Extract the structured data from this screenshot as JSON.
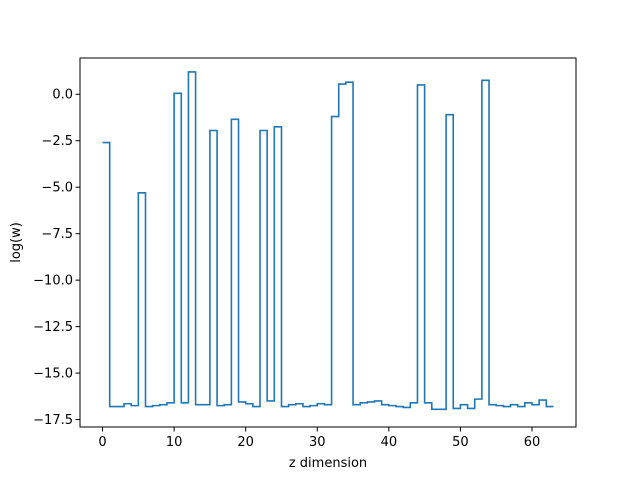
{
  "chart_data": {
    "type": "line",
    "drawstyle": "steps-post",
    "title": "",
    "xlabel": "z dimension",
    "ylabel": "log(w)",
    "xlim": [
      -3.15,
      66.15
    ],
    "ylim": [
      -17.9,
      1.95
    ],
    "xticks": [
      0,
      10,
      20,
      30,
      40,
      50,
      60
    ],
    "xtick_labels": [
      "0",
      "10",
      "20",
      "30",
      "40",
      "50",
      "60"
    ],
    "yticks": [
      -17.5,
      -15.0,
      -12.5,
      -10.0,
      -7.5,
      -5.0,
      -2.5,
      0.0
    ],
    "ytick_labels": [
      "−17.5",
      "−15.0",
      "−12.5",
      "−10.0",
      "−7.5",
      "−5.0",
      "−2.5",
      "0.0"
    ],
    "grid": false,
    "legend": "none",
    "line_color": "#1f77b4",
    "x": [
      0,
      1,
      2,
      3,
      4,
      5,
      6,
      7,
      8,
      9,
      10,
      11,
      12,
      13,
      14,
      15,
      16,
      17,
      18,
      19,
      20,
      21,
      22,
      23,
      24,
      25,
      26,
      27,
      28,
      29,
      30,
      31,
      32,
      33,
      34,
      35,
      36,
      37,
      38,
      39,
      40,
      41,
      42,
      43,
      44,
      45,
      46,
      47,
      48,
      49,
      50,
      51,
      52,
      53,
      54,
      55,
      56,
      57,
      58,
      59,
      60,
      61,
      62,
      63
    ],
    "y": [
      -2.6,
      -16.8,
      -16.8,
      -16.65,
      -16.75,
      -5.3,
      -16.8,
      -16.75,
      -16.7,
      -16.6,
      0.05,
      -16.6,
      1.2,
      -16.7,
      -16.7,
      -1.95,
      -16.75,
      -16.7,
      -1.35,
      -16.55,
      -16.65,
      -16.8,
      -1.95,
      -16.5,
      -1.75,
      -16.8,
      -16.7,
      -16.65,
      -16.8,
      -16.75,
      -16.65,
      -16.7,
      -1.2,
      0.55,
      0.65,
      -16.7,
      -16.6,
      -16.55,
      -16.5,
      -16.7,
      -16.75,
      -16.8,
      -16.85,
      -16.6,
      0.5,
      -16.6,
      -16.95,
      -16.95,
      -1.1,
      -16.9,
      -16.7,
      -16.9,
      -16.4,
      0.75,
      -16.7,
      -16.75,
      -16.8,
      -16.7,
      -16.8,
      -16.6,
      -16.7,
      -16.45,
      -16.8,
      -16.8
    ]
  }
}
